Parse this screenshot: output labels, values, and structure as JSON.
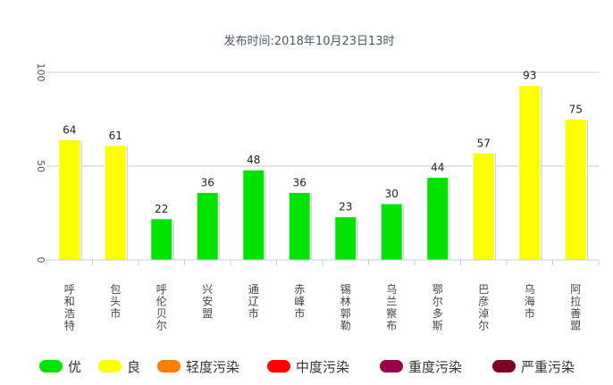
{
  "chart_data": {
    "type": "bar",
    "subtitle": "发布时间:2018年10月23日13时",
    "categories": [
      "呼和浩特市",
      "包头市",
      "呼伦贝尔市",
      "兴安盟",
      "通辽市",
      "赤峰市",
      "锡林郭勒盟",
      "乌兰察布市",
      "鄂尔多斯市",
      "巴彦淖尔市",
      "乌海市",
      "阿拉善盟"
    ],
    "values": [
      64,
      61,
      22,
      36,
      48,
      36,
      23,
      30,
      44,
      57,
      93,
      75
    ],
    "level_colors": [
      "#ffff00",
      "#ffff00",
      "#00e400",
      "#00e400",
      "#00e400",
      "#00e400",
      "#00e400",
      "#00e400",
      "#00e400",
      "#ffff00",
      "#ffff00",
      "#ffff00"
    ],
    "ylim": [
      0,
      100
    ],
    "yticks": [
      0,
      50,
      100
    ],
    "ytick_labels": [
      "0",
      "50",
      "100"
    ],
    "grid": true,
    "legend_position": "bottom",
    "legend": [
      {
        "name": "优",
        "color": "#00e400"
      },
      {
        "name": "良",
        "color": "#ffff00"
      },
      {
        "name": "轻度污染",
        "color": "#ff7e00"
      },
      {
        "name": "中度污染",
        "color": "#ff0000"
      },
      {
        "name": "重度污染",
        "color": "#99004c"
      },
      {
        "name": "严重污染",
        "color": "#7e0023"
      }
    ]
  }
}
